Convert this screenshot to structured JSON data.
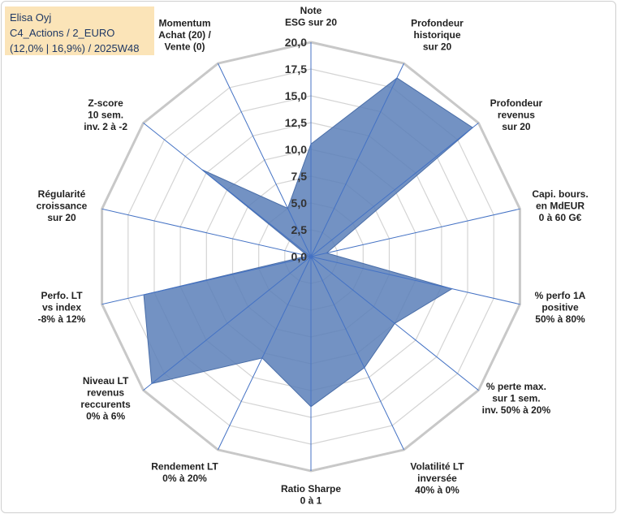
{
  "header": {
    "line1": "Elisa Oyj",
    "line2": "C4_Actions / 2_EURO",
    "line3": "(12,0% | 16,9%) / 2025W48"
  },
  "chart_data": {
    "type": "radar",
    "rmax": 20,
    "ticks": [
      "0,0",
      "2,5",
      "5,0",
      "7,5",
      "10,0",
      "12,5",
      "15,0",
      "17,5",
      "20,0"
    ],
    "tick_values": [
      0,
      2.5,
      5,
      7.5,
      10,
      12.5,
      15,
      17.5,
      20
    ],
    "grid": true,
    "axes": [
      {
        "label": [
          "Note",
          "ESG sur 20"
        ],
        "value": 10.5
      },
      {
        "label": [
          "Profondeur",
          "historique",
          "sur 20"
        ],
        "value": 18.5
      },
      {
        "label": [
          "Profondeur",
          "revenus",
          "sur 20"
        ],
        "value": 19.3
      },
      {
        "label": [
          "Capi. bours.",
          "en MdEUR",
          "0 à 60 G€"
        ],
        "value": 1.5
      },
      {
        "label": [
          "% perfo 1A",
          "positive",
          "50% à 80%"
        ],
        "value": 13.5
      },
      {
        "label": [
          "% perte max.",
          "sur 1 sem.",
          "inv. 50% à 20%"
        ],
        "value": 10.0
      },
      {
        "label": [
          "Volatilité LT",
          "inversée",
          "40% à 0%"
        ],
        "value": 11.5
      },
      {
        "label": [
          "Ratio Sharpe",
          "0 à 1"
        ],
        "value": 14.0
      },
      {
        "label": [
          "Rendement LT",
          "0% à 20%"
        ],
        "value": 10.5
      },
      {
        "label": [
          "Niveau LT",
          "revenus",
          "reccurents",
          "0% à 6%"
        ],
        "value": 19.0
      },
      {
        "label": [
          "Perfo. LT",
          "vs index",
          "-8% à 12%"
        ],
        "value": 16.0
      },
      {
        "label": [
          "Régularité",
          "croissance",
          "sur 20"
        ],
        "value": 0.3
      },
      {
        "label": [
          "Z-score",
          "10 sem.",
          "inv. 2 à -2"
        ],
        "value": 13.0
      },
      {
        "label": [
          "Momentum",
          "Achat (20) /",
          "Vente (0)"
        ],
        "value": 5.0
      }
    ],
    "series_color": "#5b7fb8",
    "series_fill_opacity": 0.85,
    "grid_color": "#d4d4d4",
    "axis_color": "#4472c4"
  }
}
